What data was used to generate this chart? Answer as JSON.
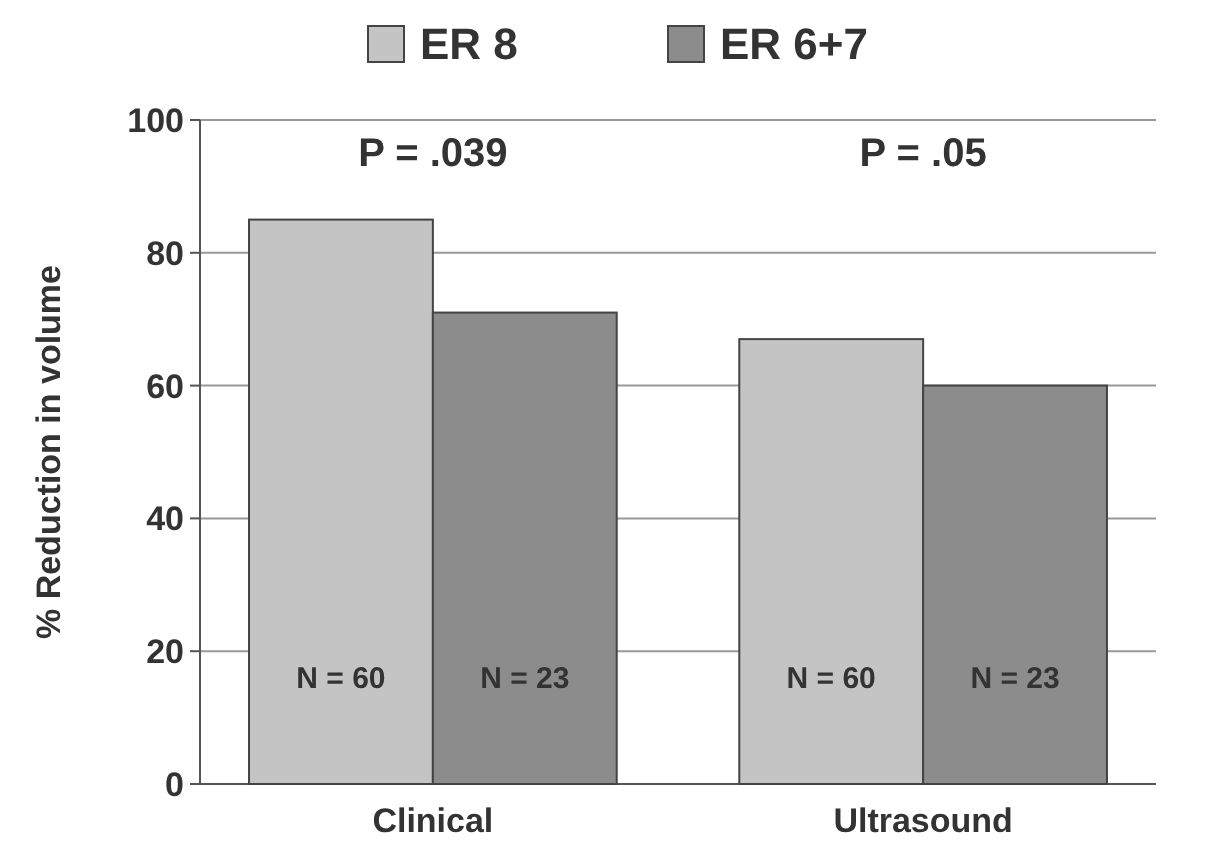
{
  "chart_data": {
    "type": "bar",
    "ylabel": "% Reduction in volume",
    "categories": [
      "Clinical",
      "Ultrasound"
    ],
    "series": [
      {
        "name": "ER 8",
        "color": "#c4c4c4",
        "values": [
          85,
          67
        ]
      },
      {
        "name": "ER 6+7",
        "color": "#8c8c8c",
        "values": [
          71,
          60
        ]
      }
    ],
    "ylim": [
      0,
      100
    ],
    "yticks": [
      0,
      20,
      40,
      60,
      80,
      100
    ],
    "grid": "y",
    "legend": "top",
    "annotations": [
      "P = .039",
      "P = .05",
      "N = 60",
      "N = 23",
      "N = 60",
      "N = 23"
    ]
  }
}
